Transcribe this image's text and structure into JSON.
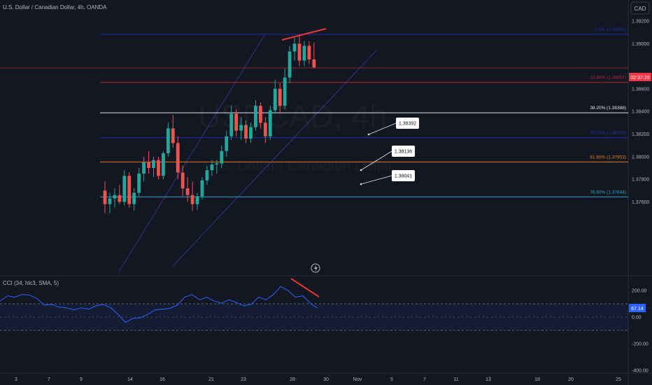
{
  "header": {
    "title": "U.S. Dollar / Canadian Dollar, 4h, OANDA",
    "currency_button": "CAD"
  },
  "watermark": {
    "symbol": "USDCAD, 4h",
    "description": "U.S. Dollar / Canadian Dollar"
  },
  "price_axis": {
    "ticks": [
      "1.39200",
      "1.39000",
      "1.38600",
      "1.38400",
      "1.38200",
      "1.38000",
      "1.37800",
      "1.37600"
    ],
    "countdown": "02:37:29",
    "countdown_color": "#f23645"
  },
  "fib_levels": [
    {
      "label": "0.0% (1.39082)",
      "price": 1.39082,
      "color": "#1e2fa8"
    },
    {
      "label": "23.60% (1.38657)",
      "price": 1.38657,
      "color": "#b22833"
    },
    {
      "label": "38.20% (1.38388)",
      "price": 1.38388,
      "color": "#e0e3eb"
    },
    {
      "label": "50.00% (1.38168)",
      "price": 1.38168,
      "color": "#1e2fa8"
    },
    {
      "label": "61.80% (1.37953)",
      "price": 1.37953,
      "color": "#e07b1a"
    },
    {
      "label": "78.60% (1.37644)",
      "price": 1.37644,
      "color": "#2aa6c9"
    }
  ],
  "current_price_line": {
    "price": 1.38785,
    "color": "#b22833"
  },
  "callouts": [
    {
      "text": "1.38392",
      "price": 1.38392
    },
    {
      "text": "1.38136",
      "price": 1.38136
    },
    {
      "text": "1.38041",
      "price": 1.38041
    }
  ],
  "indicator": {
    "label": "CCI (34, hlc3, SMA, 5)",
    "ticks": [
      "200.00",
      "0.00",
      "-200.00",
      "-400.00"
    ],
    "last_value": "67.14",
    "last_value_color": "#2962ff",
    "band_upper": 100,
    "band_lower": -100
  },
  "time_axis": {
    "ticks": [
      "3",
      "7",
      "9",
      "14",
      "16",
      "21",
      "23",
      "28",
      "30",
      "Nov",
      "5",
      "7",
      "11",
      "13",
      "18",
      "20",
      "25"
    ]
  },
  "colors": {
    "background": "#131722",
    "up_candle": "#26a69a",
    "down_candle": "#ef5350",
    "cci_line": "#2962ff",
    "divergence": "#e53935",
    "trend_line": "#2e3a8c"
  },
  "chart_data": {
    "type": "candlestick",
    "title": "U.S. Dollar / Canadian Dollar, 4h, OANDA",
    "ylim": [
      1.3748,
      1.393
    ],
    "candles": [
      [
        1.377,
        1.3778,
        1.375,
        1.3758
      ],
      [
        1.3758,
        1.3768,
        1.375,
        1.3763
      ],
      [
        1.3763,
        1.3772,
        1.3755,
        1.3766
      ],
      [
        1.3766,
        1.3775,
        1.3758,
        1.376
      ],
      [
        1.376,
        1.3788,
        1.3757,
        1.3783
      ],
      [
        1.3783,
        1.3786,
        1.3755,
        1.3758
      ],
      [
        1.3758,
        1.3772,
        1.3752,
        1.3768
      ],
      [
        1.3768,
        1.379,
        1.3765,
        1.3785
      ],
      [
        1.3785,
        1.38,
        1.3778,
        1.3795
      ],
      [
        1.3795,
        1.3805,
        1.3785,
        1.379
      ],
      [
        1.379,
        1.38,
        1.3782,
        1.3797
      ],
      [
        1.3797,
        1.38,
        1.378,
        1.3783
      ],
      [
        1.3783,
        1.3805,
        1.378,
        1.3803
      ],
      [
        1.3803,
        1.383,
        1.38,
        1.3825
      ],
      [
        1.3825,
        1.3837,
        1.3808,
        1.3812
      ],
      [
        1.3812,
        1.3818,
        1.378,
        1.3786
      ],
      [
        1.3786,
        1.3792,
        1.3765,
        1.3772
      ],
      [
        1.3772,
        1.3782,
        1.376,
        1.3766
      ],
      [
        1.3766,
        1.3778,
        1.3752,
        1.3758
      ],
      [
        1.3758,
        1.3768,
        1.3753,
        1.3765
      ],
      [
        1.3765,
        1.3782,
        1.3762,
        1.3779
      ],
      [
        1.3779,
        1.3792,
        1.3775,
        1.3788
      ],
      [
        1.3788,
        1.3797,
        1.3783,
        1.3793
      ],
      [
        1.3793,
        1.3797,
        1.3785,
        1.3794
      ],
      [
        1.3794,
        1.381,
        1.379,
        1.3805
      ],
      [
        1.3805,
        1.3823,
        1.38,
        1.3818
      ],
      [
        1.3818,
        1.3845,
        1.3815,
        1.3838
      ],
      [
        1.3838,
        1.3842,
        1.3818,
        1.3823
      ],
      [
        1.3823,
        1.3835,
        1.3815,
        1.3828
      ],
      [
        1.3828,
        1.3832,
        1.3812,
        1.3816
      ],
      [
        1.3816,
        1.383,
        1.3812,
        1.3826
      ],
      [
        1.3826,
        1.385,
        1.3823,
        1.3845
      ],
      [
        1.3845,
        1.3848,
        1.3825,
        1.383
      ],
      [
        1.383,
        1.3835,
        1.3812,
        1.3818
      ],
      [
        1.3818,
        1.3845,
        1.3815,
        1.3841
      ],
      [
        1.3841,
        1.3868,
        1.3838,
        1.386
      ],
      [
        1.386,
        1.3865,
        1.3838,
        1.3845
      ],
      [
        1.3845,
        1.3878,
        1.3842,
        1.387
      ],
      [
        1.387,
        1.3898,
        1.3865,
        1.3893
      ],
      [
        1.3893,
        1.3905,
        1.3885,
        1.39
      ],
      [
        1.39,
        1.3908,
        1.388,
        1.3885
      ],
      [
        1.3885,
        1.3902,
        1.388,
        1.3898
      ],
      [
        1.3898,
        1.3902,
        1.3882,
        1.3886
      ],
      [
        1.3886,
        1.3901,
        1.3878,
        1.3879
      ]
    ],
    "cci": [
      120,
      160,
      150,
      170,
      165,
      140,
      90,
      95,
      75,
      70,
      55,
      70,
      60,
      85,
      95,
      70,
      20,
      -40,
      -10,
      -5,
      20,
      55,
      60,
      65,
      90,
      150,
      170,
      130,
      150,
      120,
      105,
      130,
      110,
      85,
      95,
      150,
      130,
      170,
      230,
      200,
      150,
      160,
      105,
      67
    ]
  }
}
